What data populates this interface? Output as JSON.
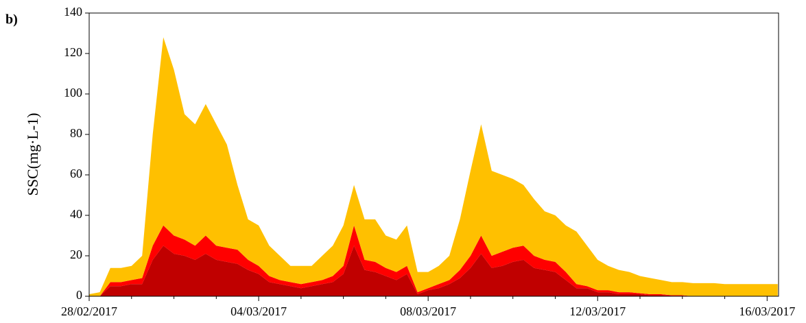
{
  "chart_data": {
    "type": "stacked_area",
    "annotation": "b)",
    "y_label": "SSC(mg·L-1)",
    "x": [
      0,
      0.25,
      0.5,
      0.75,
      1,
      1.25,
      1.5,
      1.75,
      2,
      2.25,
      2.5,
      2.75,
      3,
      3.25,
      3.5,
      3.75,
      4,
      4.25,
      4.5,
      4.75,
      5,
      5.25,
      5.5,
      5.75,
      6,
      6.25,
      6.5,
      6.75,
      7,
      7.25,
      7.5,
      7.75,
      8,
      8.25,
      8.5,
      8.75,
      9,
      9.25,
      9.5,
      9.75,
      10,
      10.25,
      10.5,
      10.75,
      11,
      11.25,
      11.5,
      11.75,
      12,
      12.25,
      12.5,
      12.75,
      13,
      13.25,
      13.5,
      13.75,
      14,
      14.25,
      14.5,
      14.75,
      15,
      15.25,
      15.5,
      15.75,
      16,
      16.25
    ],
    "series": [
      {
        "color": "#c00000",
        "values": [
          0,
          0,
          5,
          5,
          6,
          6,
          18,
          25,
          21,
          20,
          18,
          21,
          18,
          17,
          16,
          13,
          11,
          7,
          6,
          5,
          4,
          5,
          6,
          7,
          11,
          25,
          13,
          12,
          10,
          8,
          11,
          1,
          3,
          4,
          6,
          9,
          14,
          21,
          14,
          15,
          17,
          18,
          14,
          13,
          12,
          8,
          4,
          4,
          2,
          2,
          1,
          1,
          1,
          0.5,
          0.5,
          0.3,
          0.3,
          0,
          0,
          0,
          0,
          0,
          0,
          0,
          0,
          0
        ]
      },
      {
        "color": "#ff0000",
        "values": [
          0,
          0,
          2,
          2,
          2,
          3,
          7,
          10,
          9,
          8,
          7,
          9,
          7,
          7,
          7,
          5,
          4,
          3,
          2,
          2,
          2,
          2,
          2,
          3,
          4,
          10,
          5,
          5,
          4,
          4,
          4,
          1,
          1,
          2,
          2,
          4,
          6,
          9,
          6,
          7,
          7,
          7,
          6,
          5,
          5,
          4,
          2,
          1,
          1,
          1,
          1,
          1,
          0.5,
          0.5,
          0.5,
          0.2,
          0.2,
          0,
          0,
          0,
          0,
          0,
          0,
          0,
          0,
          0
        ]
      },
      {
        "color": "#ffc000",
        "values": [
          1,
          2,
          7,
          7,
          7,
          11,
          55,
          93,
          82,
          62,
          60,
          65,
          60,
          51,
          32,
          20,
          20,
          15,
          12,
          8,
          9,
          8,
          12,
          15,
          20,
          20,
          20,
          21,
          16,
          16,
          20,
          10,
          8,
          9,
          12,
          25,
          42,
          55,
          42,
          38,
          34,
          30,
          28,
          24,
          23,
          23,
          26,
          20,
          15,
          12,
          11,
          10,
          8.5,
          8,
          7,
          6.5,
          6.5,
          6.5,
          6.5,
          6.5,
          6,
          6,
          6,
          6,
          6,
          6
        ]
      }
    ],
    "xlim": [
      0,
      16.27
    ],
    "xticks": [
      {
        "value": 0,
        "label": "28/02/2017"
      },
      {
        "value": 4,
        "label": "04/03/2017"
      },
      {
        "value": 8,
        "label": "08/03/2017"
      },
      {
        "value": 12,
        "label": "12/03/2017"
      },
      {
        "value": 16,
        "label": "16/03/2017"
      }
    ],
    "xminorticks": [
      1,
      2,
      3,
      5,
      6,
      7,
      9,
      10,
      11,
      13,
      14,
      15
    ],
    "ylim": [
      0,
      140
    ],
    "yticks": [
      0,
      20,
      40,
      60,
      80,
      100,
      120,
      140
    ],
    "grid": false
  }
}
